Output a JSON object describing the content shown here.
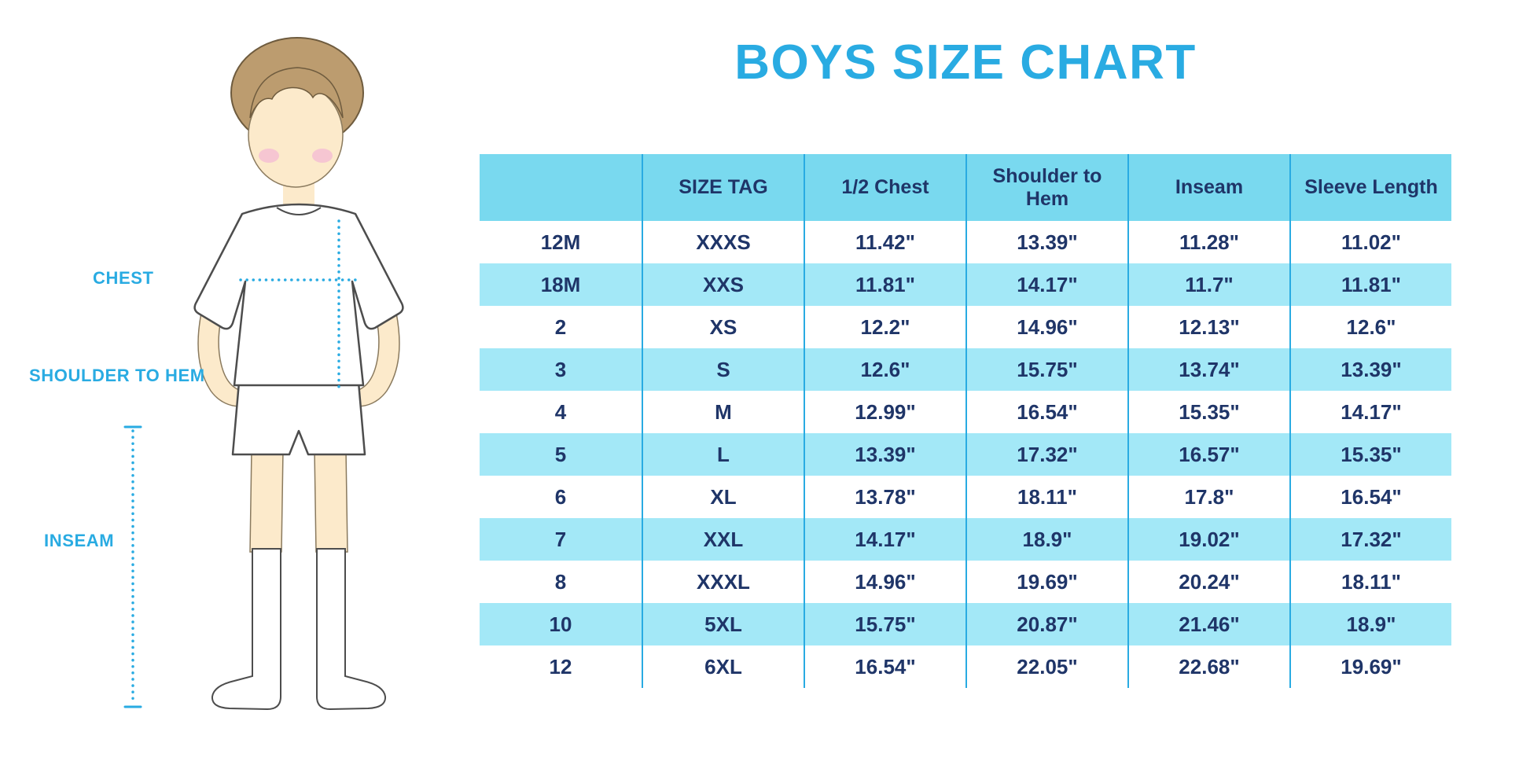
{
  "title": "BOYS SIZE CHART",
  "figure_labels": {
    "chest": "CHEST",
    "shoulder_to_hem": "SHOULDER TO HEM",
    "inseam": "INSEAM"
  },
  "chart_data": {
    "type": "table",
    "title": "BOYS SIZE CHART",
    "columns": [
      "",
      "SIZE TAG",
      "1/2 Chest",
      "Shoulder to Hem",
      "Inseam",
      "Sleeve Length"
    ],
    "rows": [
      [
        "12M",
        "XXXS",
        "11.42\"",
        "13.39\"",
        "11.28\"",
        "11.02\""
      ],
      [
        "18M",
        "XXS",
        "11.81\"",
        "14.17\"",
        "11.7\"",
        "11.81\""
      ],
      [
        "2",
        "XS",
        "12.2\"",
        "14.96\"",
        "12.13\"",
        "12.6\""
      ],
      [
        "3",
        "S",
        "12.6\"",
        "15.75\"",
        "13.74\"",
        "13.39\""
      ],
      [
        "4",
        "M",
        "12.99\"",
        "16.54\"",
        "15.35\"",
        "14.17\""
      ],
      [
        "5",
        "L",
        "13.39\"",
        "17.32\"",
        "16.57\"",
        "15.35\""
      ],
      [
        "6",
        "XL",
        "13.78\"",
        "18.11\"",
        "17.8\"",
        "16.54\""
      ],
      [
        "7",
        "XXL",
        "14.17\"",
        "18.9\"",
        "19.02\"",
        "17.32\""
      ],
      [
        "8",
        "XXXL",
        "14.96\"",
        "19.69\"",
        "20.24\"",
        "18.11\""
      ],
      [
        "10",
        "5XL",
        "15.75\"",
        "20.87\"",
        "21.46\"",
        "18.9\""
      ],
      [
        "12",
        "6XL",
        "16.54\"",
        "22.05\"",
        "22.68\"",
        "19.69\""
      ]
    ],
    "layout": {
      "header_row_bg": "cyan",
      "alternating_rows": [
        "white",
        "cyan"
      ],
      "grid": "vertical-lines-only"
    }
  },
  "colors": {
    "accent_blue": "#29ABE2",
    "header_bg": "#79D9EF",
    "row_alt_bg": "#A3E8F7",
    "text_navy": "#1F3568"
  }
}
